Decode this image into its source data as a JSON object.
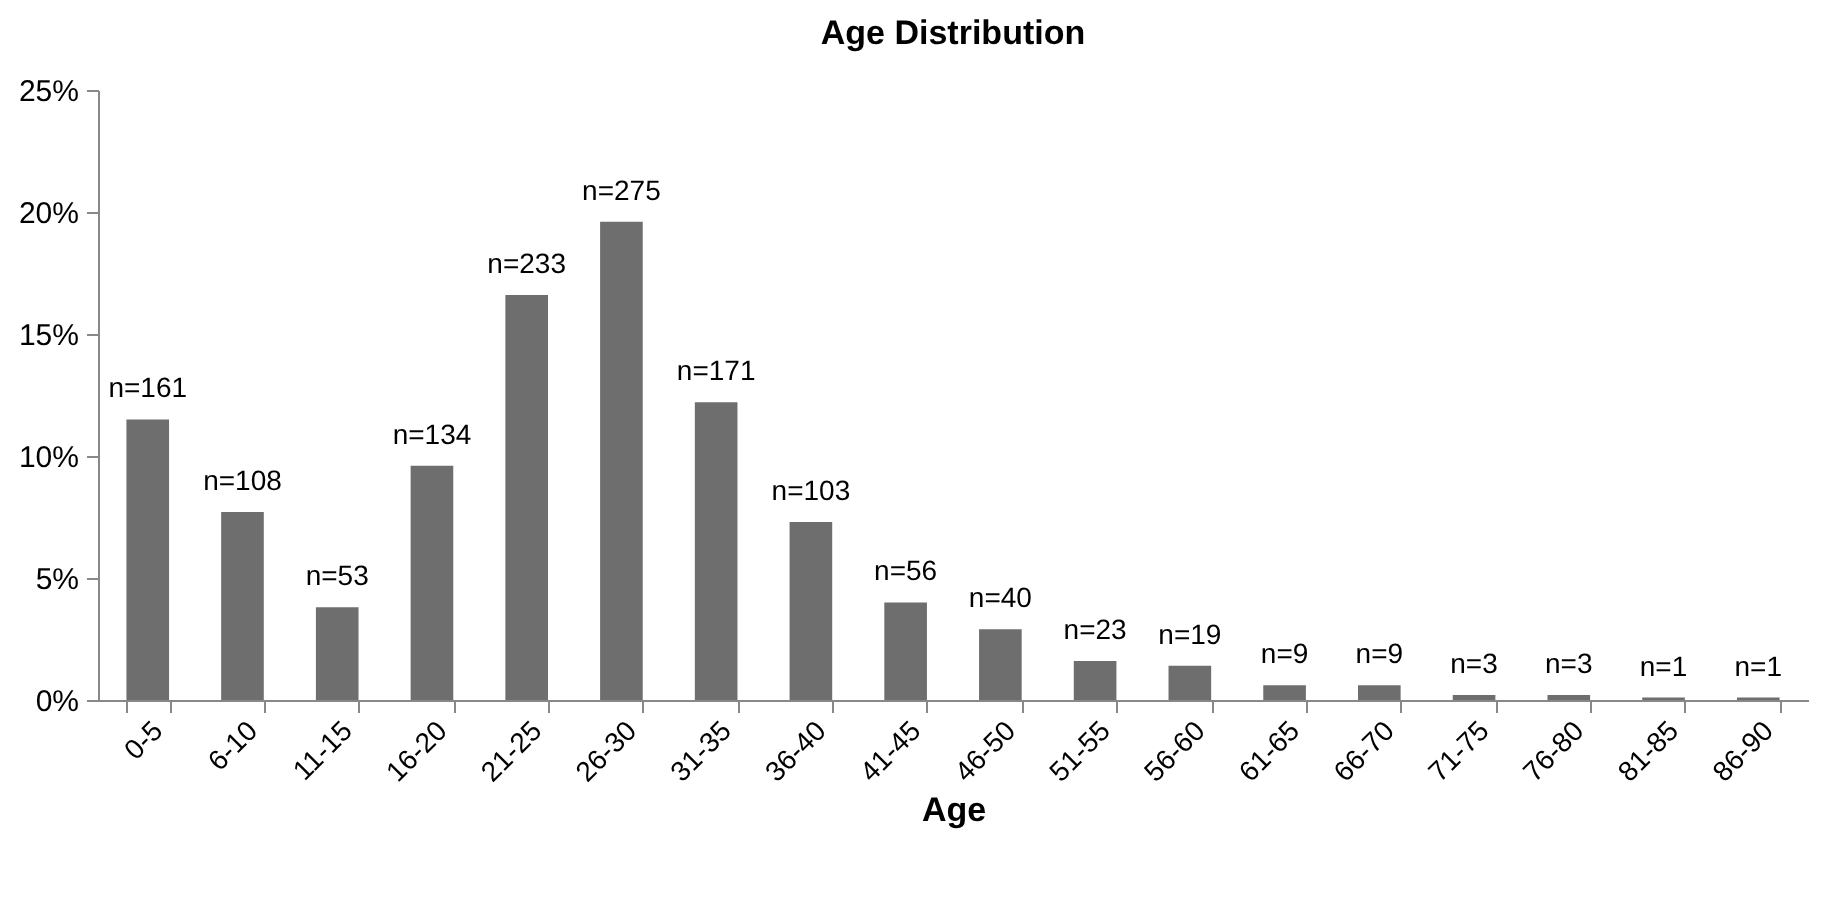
{
  "chart_data": {
    "type": "bar",
    "title": "Age Distribution",
    "xlabel": "Age",
    "categories": [
      "0-5",
      "6-10",
      "11-15",
      "16-20",
      "21-25",
      "26-30",
      "31-35",
      "36-40",
      "41-45",
      "46-50",
      "51-55",
      "56-60",
      "61-65",
      "66-70",
      "71-75",
      "76-80",
      "81-85",
      "86-90"
    ],
    "values": [
      11.5,
      7.7,
      3.8,
      9.6,
      16.6,
      19.6,
      12.2,
      7.3,
      4.0,
      2.9,
      1.6,
      1.4,
      0.6,
      0.6,
      0.2,
      0.2,
      0.1,
      0.1
    ],
    "annotations": [
      {
        "text": "n=161",
        "x": "0-5",
        "y": 11.5
      },
      {
        "text": "n=108",
        "x": "6-10",
        "y": 7.7
      },
      {
        "text": "n=53",
        "x": "11-15",
        "y": 3.8
      },
      {
        "text": "n=134",
        "x": "16-20",
        "y": 9.6
      },
      {
        "text": "n=233",
        "x": "21-25",
        "y": 16.6
      },
      {
        "text": "n=275",
        "x": "26-30",
        "y": 19.6
      },
      {
        "text": "n=171",
        "x": "31-35",
        "y": 12.2
      },
      {
        "text": "n=103",
        "x": "36-40",
        "y": 7.3
      },
      {
        "text": "n=56",
        "x": "41-45",
        "y": 4.0
      },
      {
        "text": "n=40",
        "x": "46-50",
        "y": 2.9
      },
      {
        "text": "n=23",
        "x": "51-55",
        "y": 1.6
      },
      {
        "text": "n=19",
        "x": "56-60",
        "y": 1.4
      },
      {
        "text": "n=9",
        "x": "61-65",
        "y": 0.6
      },
      {
        "text": "n=9",
        "x": "66-70",
        "y": 0.6
      },
      {
        "text": "n=3",
        "x": "71-75",
        "y": 0.2
      },
      {
        "text": "n=3",
        "x": "76-80",
        "y": 0.2
      },
      {
        "text": "n=1",
        "x": "81-85",
        "y": 0.1
      },
      {
        "text": "n=1",
        "x": "86-90",
        "y": 0.1
      }
    ],
    "color": "#6e6e6e",
    "ylim": [
      0,
      25
    ],
    "yticks": [
      {
        "value": 0,
        "label": "0%"
      },
      {
        "value": 5,
        "label": "5%"
      },
      {
        "value": 10,
        "label": "10%"
      },
      {
        "value": 15,
        "label": "15%"
      },
      {
        "value": 20,
        "label": "20%"
      },
      {
        "value": 25,
        "label": "25%"
      }
    ],
    "grid": false
  }
}
